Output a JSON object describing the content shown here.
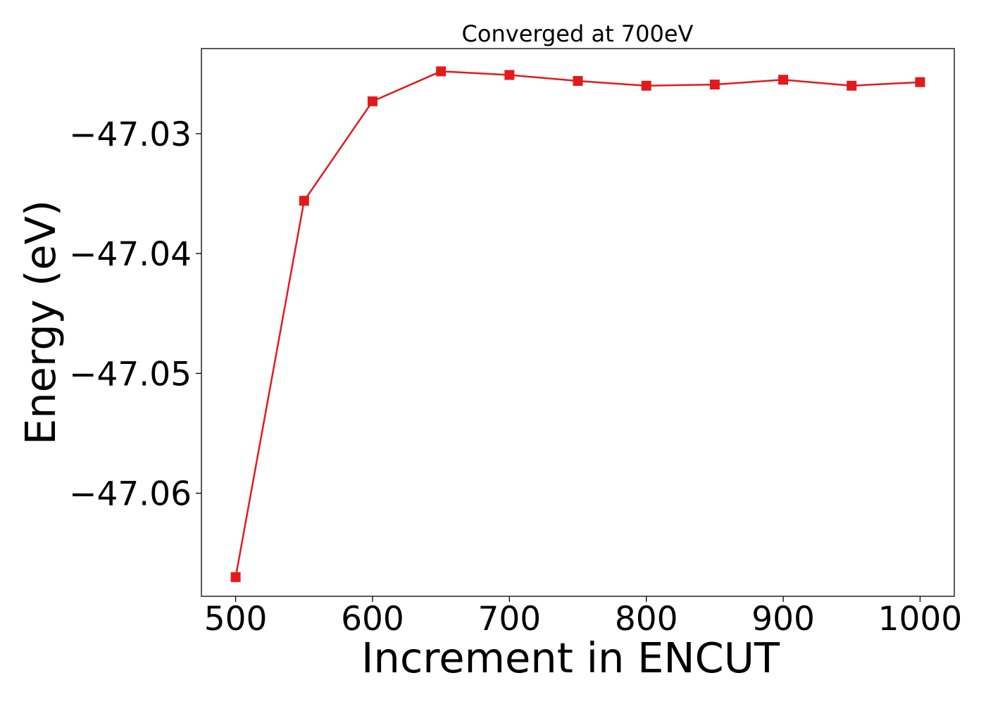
{
  "chart_data": {
    "type": "line",
    "title": "Converged at 700eV",
    "xlabel": "Increment in ENCUT",
    "ylabel": "Energy (eV)",
    "xlim": [
      475,
      1025
    ],
    "ylim": [
      -47.0686,
      -47.0229
    ],
    "x_ticks": [
      500,
      600,
      700,
      800,
      900,
      1000
    ],
    "x_tick_labels": [
      "500",
      "600",
      "700",
      "800",
      "900",
      "1000"
    ],
    "y_ticks": [
      -47.03,
      -47.04,
      -47.05,
      -47.06
    ],
    "y_tick_labels": [
      "−47.03",
      "−47.04",
      "−47.05",
      "−47.06"
    ],
    "grid": false,
    "series": [
      {
        "color": "#e31a1c",
        "marker": "square",
        "x": [
          500,
          550,
          600,
          650,
          700,
          750,
          800,
          850,
          900,
          950,
          1000
        ],
        "y": [
          -47.067,
          -47.0356,
          -47.0273,
          -47.0248,
          -47.0251,
          -47.0256,
          -47.026,
          -47.0259,
          -47.0255,
          -47.026,
          -47.0257
        ]
      }
    ]
  }
}
